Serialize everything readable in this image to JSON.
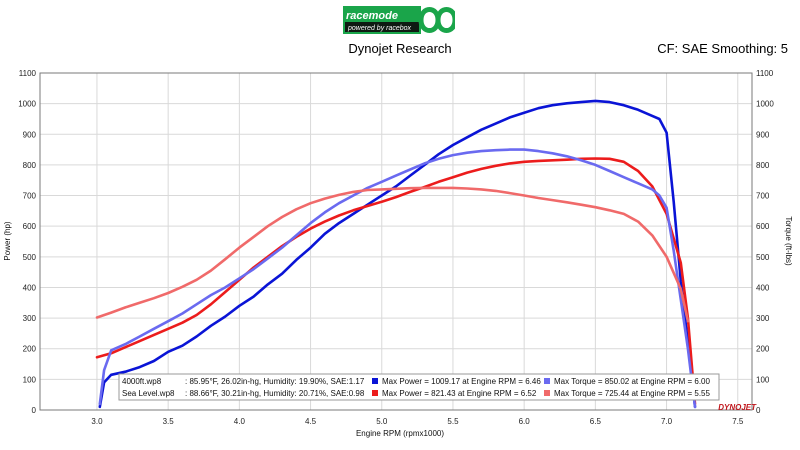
{
  "header": {
    "logo_text_top": "racemode",
    "logo_text_bottom": "powered by racebox",
    "title": "Dynojet Research",
    "settings": "CF: SAE Smoothing: 5"
  },
  "watermark": "DYNOJET",
  "chart_data": {
    "type": "line",
    "xlabel": "Engine RPM (rpmx1000)",
    "ylabel_left": "Power (hp)",
    "ylabel_right": "Torque (ft-lbs)",
    "xlim": [
      2.6,
      7.6
    ],
    "ylim": [
      0,
      1100
    ],
    "x_ticks": [
      "3.0",
      "3.5",
      "4.0",
      "4.5",
      "5.0",
      "5.5",
      "6.0",
      "6.5",
      "7.0",
      "7.5"
    ],
    "y_ticks": [
      "0",
      "100",
      "200",
      "300",
      "400",
      "500",
      "600",
      "700",
      "800",
      "900",
      "1000",
      "1100"
    ],
    "grid": true,
    "series": [
      {
        "run": "4000ft.wp8",
        "measure": "Power",
        "color": "#0a14d6",
        "x": [
          3.02,
          3.05,
          3.1,
          3.2,
          3.3,
          3.4,
          3.5,
          3.6,
          3.7,
          3.8,
          3.9,
          4.0,
          4.1,
          4.2,
          4.3,
          4.4,
          4.5,
          4.6,
          4.7,
          4.8,
          4.9,
          5.0,
          5.1,
          5.2,
          5.3,
          5.4,
          5.5,
          5.6,
          5.7,
          5.8,
          5.9,
          6.0,
          6.1,
          6.2,
          6.3,
          6.4,
          6.5,
          6.6,
          6.7,
          6.8,
          6.9,
          6.95,
          7.0,
          7.05,
          7.1,
          7.15,
          7.2
        ],
        "y": [
          10,
          90,
          115,
          125,
          140,
          160,
          190,
          210,
          240,
          275,
          305,
          340,
          370,
          410,
          445,
          490,
          530,
          575,
          610,
          640,
          670,
          700,
          730,
          765,
          800,
          835,
          865,
          890,
          915,
          935,
          955,
          970,
          985,
          995,
          1001,
          1005,
          1009,
          1005,
          995,
          980,
          960,
          950,
          905,
          680,
          420,
          220,
          10
        ]
      },
      {
        "run": "Sea Level.wp8",
        "measure": "Power",
        "color": "#ec1c1c",
        "x": [
          3.0,
          3.1,
          3.2,
          3.3,
          3.4,
          3.5,
          3.6,
          3.7,
          3.8,
          3.9,
          4.0,
          4.1,
          4.2,
          4.3,
          4.4,
          4.5,
          4.6,
          4.7,
          4.8,
          4.9,
          5.0,
          5.1,
          5.2,
          5.3,
          5.4,
          5.5,
          5.6,
          5.7,
          5.8,
          5.9,
          6.0,
          6.1,
          6.2,
          6.3,
          6.4,
          6.5,
          6.6,
          6.7,
          6.8,
          6.9,
          7.0,
          7.1,
          7.15,
          7.2
        ],
        "y": [
          172,
          185,
          205,
          225,
          245,
          265,
          285,
          310,
          345,
          385,
          425,
          465,
          500,
          535,
          565,
          592,
          615,
          635,
          652,
          666,
          680,
          695,
          712,
          728,
          745,
          760,
          775,
          787,
          797,
          805,
          810,
          813,
          815,
          817,
          820,
          821,
          820,
          810,
          780,
          730,
          640,
          480,
          300,
          20
        ]
      },
      {
        "run": "4000ft.wp8",
        "measure": "Torque",
        "color": "#6a6af0",
        "x": [
          3.02,
          3.05,
          3.1,
          3.2,
          3.3,
          3.4,
          3.5,
          3.6,
          3.7,
          3.8,
          3.9,
          4.0,
          4.1,
          4.2,
          4.3,
          4.4,
          4.5,
          4.6,
          4.7,
          4.8,
          4.9,
          5.0,
          5.1,
          5.2,
          5.3,
          5.4,
          5.5,
          5.6,
          5.7,
          5.8,
          5.9,
          6.0,
          6.1,
          6.2,
          6.3,
          6.4,
          6.5,
          6.6,
          6.7,
          6.8,
          6.9,
          6.95,
          7.0,
          7.05,
          7.1,
          7.15,
          7.2
        ],
        "y": [
          20,
          130,
          195,
          215,
          240,
          265,
          290,
          315,
          345,
          375,
          400,
          430,
          460,
          495,
          530,
          570,
          610,
          645,
          675,
          700,
          725,
          745,
          765,
          785,
          805,
          820,
          832,
          840,
          845,
          848,
          850,
          850,
          845,
          838,
          828,
          815,
          800,
          780,
          760,
          740,
          720,
          700,
          660,
          520,
          360,
          200,
          10
        ]
      },
      {
        "run": "Sea Level.wp8",
        "measure": "Torque",
        "color": "#f06a6a",
        "x": [
          3.0,
          3.1,
          3.2,
          3.3,
          3.4,
          3.5,
          3.6,
          3.7,
          3.8,
          3.9,
          4.0,
          4.1,
          4.2,
          4.3,
          4.4,
          4.5,
          4.6,
          4.7,
          4.8,
          4.9,
          5.0,
          5.1,
          5.2,
          5.3,
          5.4,
          5.5,
          5.6,
          5.7,
          5.8,
          5.9,
          6.0,
          6.1,
          6.2,
          6.3,
          6.4,
          6.5,
          6.6,
          6.7,
          6.8,
          6.9,
          7.0,
          7.1,
          7.15
        ],
        "y": [
          302,
          318,
          335,
          350,
          365,
          382,
          402,
          425,
          455,
          492,
          530,
          565,
          600,
          630,
          655,
          675,
          690,
          702,
          712,
          718,
          720,
          722,
          724,
          725,
          725,
          725,
          723,
          720,
          715,
          708,
          700,
          692,
          685,
          678,
          670,
          662,
          652,
          640,
          615,
          570,
          500,
          395,
          290
        ]
      }
    ]
  },
  "legend": {
    "runs": [
      {
        "name": "4000ft.wp8",
        "conditions": ": 85.95°F, 26.02in-hg, Humidity: 19.90%, SAE:1.17"
      },
      {
        "name": "Sea Level.wp8",
        "conditions": ": 88.66°F, 30.21in-hg, Humidity: 20.71%, SAE:0.98"
      }
    ],
    "entries": [
      {
        "color": "#0a14d6",
        "text": "Max Power = 1009.17 at Engine RPM = 6.46"
      },
      {
        "color": "#6a6af0",
        "text": "Max Torque = 850.02 at Engine RPM = 6.00"
      },
      {
        "color": "#ec1c1c",
        "text": "Max Power = 821.43 at Engine RPM = 6.52"
      },
      {
        "color": "#f06a6a",
        "text": "Max Torque = 725.44 at Engine RPM = 5.55"
      }
    ]
  }
}
